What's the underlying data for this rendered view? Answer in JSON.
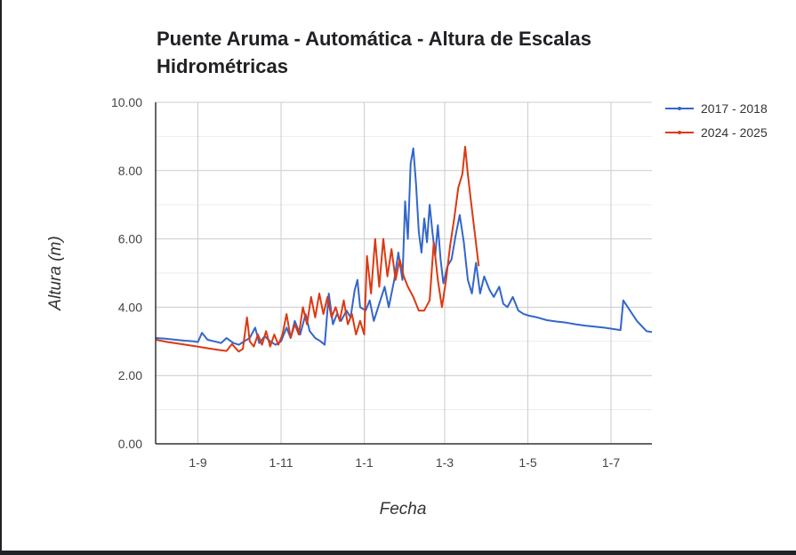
{
  "chart_data": {
    "type": "line",
    "title": "Puente Aruma - Automática - Altura de Escalas Hidrométricas",
    "xlabel": "Fecha",
    "ylabel": "Altura (m)",
    "ylim": [
      0,
      10
    ],
    "yticks": [
      "0.00",
      "2.00",
      "4.00",
      "6.00",
      "8.00",
      "10.00"
    ],
    "xlim": [
      "08-01",
      "07-31"
    ],
    "xticks": [
      {
        "date": "09-01",
        "label": "1-9"
      },
      {
        "date": "11-01",
        "label": "1-11"
      },
      {
        "date": "01-01",
        "label": "1-1"
      },
      {
        "date": "03-01",
        "label": "1-3"
      },
      {
        "date": "05-01",
        "label": "1-5"
      },
      {
        "date": "07-01",
        "label": "1-7"
      }
    ],
    "grid": true,
    "legend_position": "right",
    "series": [
      {
        "name": "2017 - 2018",
        "color": "#3366cc",
        "points": [
          [
            "08-01",
            3.1
          ],
          [
            "08-08",
            3.08
          ],
          [
            "08-15",
            3.05
          ],
          [
            "08-22",
            3.02
          ],
          [
            "08-29",
            3.0
          ],
          [
            "09-01",
            2.98
          ],
          [
            "09-04",
            3.25
          ],
          [
            "09-08",
            3.05
          ],
          [
            "09-13",
            3.0
          ],
          [
            "09-18",
            2.95
          ],
          [
            "09-22",
            3.1
          ],
          [
            "09-27",
            2.95
          ],
          [
            "10-01",
            2.9
          ],
          [
            "10-05",
            3.0
          ],
          [
            "10-09",
            3.1
          ],
          [
            "10-13",
            3.4
          ],
          [
            "10-16",
            2.95
          ],
          [
            "10-20",
            3.15
          ],
          [
            "10-24",
            3.0
          ],
          [
            "10-28",
            2.9
          ],
          [
            "11-01",
            3.0
          ],
          [
            "11-05",
            3.4
          ],
          [
            "11-08",
            3.1
          ],
          [
            "11-11",
            3.6
          ],
          [
            "11-15",
            3.2
          ],
          [
            "11-19",
            3.8
          ],
          [
            "11-22",
            3.3
          ],
          [
            "11-26",
            3.1
          ],
          [
            "11-30",
            3.0
          ],
          [
            "12-03",
            2.9
          ],
          [
            "12-06",
            4.4
          ],
          [
            "12-09",
            3.5
          ],
          [
            "12-12",
            3.8
          ],
          [
            "12-15",
            3.6
          ],
          [
            "12-19",
            3.9
          ],
          [
            "12-22",
            3.7
          ],
          [
            "12-25",
            4.5
          ],
          [
            "12-27",
            4.8
          ],
          [
            "12-29",
            4.0
          ],
          [
            "01-02",
            3.9
          ],
          [
            "01-05",
            4.2
          ],
          [
            "01-08",
            3.6
          ],
          [
            "01-12",
            4.1
          ],
          [
            "01-16",
            4.6
          ],
          [
            "01-19",
            4.0
          ],
          [
            "01-23",
            4.8
          ],
          [
            "01-26",
            5.6
          ],
          [
            "01-29",
            4.8
          ],
          [
            "01-31",
            7.1
          ],
          [
            "02-02",
            6.0
          ],
          [
            "02-04",
            8.2
          ],
          [
            "02-06",
            8.65
          ],
          [
            "02-08",
            7.6
          ],
          [
            "02-10",
            6.2
          ],
          [
            "02-12",
            5.6
          ],
          [
            "02-14",
            6.6
          ],
          [
            "02-16",
            5.9
          ],
          [
            "02-18",
            7.0
          ],
          [
            "02-20",
            6.2
          ],
          [
            "02-22",
            5.5
          ],
          [
            "02-24",
            6.4
          ],
          [
            "02-26",
            5.4
          ],
          [
            "02-28",
            4.7
          ],
          [
            "03-03",
            5.2
          ],
          [
            "03-06",
            5.4
          ],
          [
            "03-09",
            6.1
          ],
          [
            "03-12",
            6.7
          ],
          [
            "03-15",
            5.9
          ],
          [
            "03-18",
            4.8
          ],
          [
            "03-21",
            4.4
          ],
          [
            "03-24",
            5.3
          ],
          [
            "03-27",
            4.4
          ],
          [
            "03-30",
            4.9
          ],
          [
            "04-03",
            4.5
          ],
          [
            "04-06",
            4.3
          ],
          [
            "04-10",
            4.6
          ],
          [
            "04-13",
            4.1
          ],
          [
            "04-16",
            4.0
          ],
          [
            "04-20",
            4.3
          ],
          [
            "04-24",
            3.9
          ],
          [
            "04-28",
            3.8
          ],
          [
            "05-02",
            3.75
          ],
          [
            "05-08",
            3.7
          ],
          [
            "05-15",
            3.62
          ],
          [
            "05-22",
            3.58
          ],
          [
            "05-29",
            3.55
          ],
          [
            "06-05",
            3.5
          ],
          [
            "06-12",
            3.46
          ],
          [
            "06-19",
            3.43
          ],
          [
            "06-26",
            3.4
          ],
          [
            "07-03",
            3.36
          ],
          [
            "07-08",
            3.33
          ],
          [
            "07-10",
            4.2
          ],
          [
            "07-20",
            3.6
          ],
          [
            "07-27",
            3.3
          ],
          [
            "07-31",
            3.27
          ]
        ]
      },
      {
        "name": "2024 - 2025",
        "color": "#dc3912",
        "points": [
          [
            "08-01",
            3.05
          ],
          [
            "08-10",
            2.98
          ],
          [
            "08-20",
            2.92
          ],
          [
            "08-30",
            2.86
          ],
          [
            "09-08",
            2.8
          ],
          [
            "09-16",
            2.75
          ],
          [
            "09-22",
            2.72
          ],
          [
            "09-26",
            2.92
          ],
          [
            "10-01",
            2.7
          ],
          [
            "10-04",
            2.78
          ],
          [
            "10-07",
            3.7
          ],
          [
            "10-09",
            3.0
          ],
          [
            "10-12",
            2.85
          ],
          [
            "10-15",
            3.2
          ],
          [
            "10-18",
            2.9
          ],
          [
            "10-21",
            3.3
          ],
          [
            "10-24",
            2.85
          ],
          [
            "10-27",
            3.2
          ],
          [
            "10-30",
            2.9
          ],
          [
            "11-02",
            3.2
          ],
          [
            "11-05",
            3.8
          ],
          [
            "11-08",
            3.1
          ],
          [
            "11-11",
            3.5
          ],
          [
            "11-14",
            3.2
          ],
          [
            "11-17",
            4.0
          ],
          [
            "11-20",
            3.5
          ],
          [
            "11-23",
            4.3
          ],
          [
            "11-26",
            3.7
          ],
          [
            "11-29",
            4.4
          ],
          [
            "12-02",
            3.8
          ],
          [
            "12-05",
            4.3
          ],
          [
            "12-08",
            3.7
          ],
          [
            "12-11",
            4.0
          ],
          [
            "12-14",
            3.6
          ],
          [
            "12-17",
            4.2
          ],
          [
            "12-20",
            3.5
          ],
          [
            "12-23",
            3.8
          ],
          [
            "12-26",
            3.2
          ],
          [
            "12-29",
            3.6
          ],
          [
            "01-01",
            3.2
          ],
          [
            "01-03",
            5.5
          ],
          [
            "01-06",
            4.4
          ],
          [
            "01-09",
            6.0
          ],
          [
            "01-12",
            4.6
          ],
          [
            "01-15",
            6.0
          ],
          [
            "01-18",
            4.9
          ],
          [
            "01-21",
            5.7
          ],
          [
            "01-24",
            4.8
          ],
          [
            "01-27",
            5.4
          ],
          [
            "01-30",
            4.9
          ],
          [
            "02-02",
            4.6
          ],
          [
            "02-06",
            4.3
          ],
          [
            "02-10",
            3.9
          ],
          [
            "02-14",
            3.9
          ],
          [
            "02-18",
            4.2
          ],
          [
            "02-21",
            5.9
          ],
          [
            "02-24",
            4.8
          ],
          [
            "02-27",
            4.0
          ],
          [
            "03-02",
            4.8
          ],
          [
            "03-05",
            5.8
          ],
          [
            "03-08",
            6.6
          ],
          [
            "03-11",
            7.5
          ],
          [
            "03-14",
            7.9
          ],
          [
            "03-16",
            8.7
          ],
          [
            "03-18",
            7.9
          ],
          [
            "03-20",
            7.2
          ],
          [
            "03-23",
            6.2
          ],
          [
            "03-26",
            5.2
          ]
        ]
      }
    ]
  }
}
